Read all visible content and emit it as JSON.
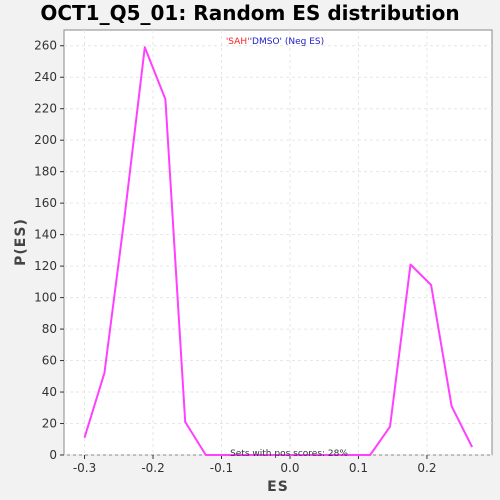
{
  "chart_data": {
    "type": "line",
    "title": "OCT1_Q5_01: Random ES distribution",
    "xlabel": "ES",
    "ylabel": "P(ES)",
    "xlim": [
      -0.33,
      0.295
    ],
    "ylim": [
      0,
      270
    ],
    "x_ticks": [
      "-0.3",
      "-0.2",
      "-0.1",
      "0.0",
      "0.1",
      "0.2"
    ],
    "x_tick_values": [
      -0.3,
      -0.2,
      -0.1,
      0.0,
      0.1,
      0.2
    ],
    "y_ticks": [
      "0",
      "20",
      "40",
      "60",
      "80",
      "100",
      "120",
      "140",
      "160",
      "180",
      "200",
      "220",
      "240",
      "260"
    ],
    "y_tick_values": [
      0,
      20,
      40,
      60,
      80,
      100,
      120,
      140,
      160,
      180,
      200,
      220,
      240,
      260
    ],
    "grid": true,
    "series": [
      {
        "color": "#ff40ff",
        "points": [
          [
            -0.3,
            11
          ],
          [
            -0.271,
            52
          ],
          [
            -0.242,
            150
          ],
          [
            -0.212,
            259
          ],
          [
            -0.182,
            226
          ],
          [
            -0.153,
            21
          ],
          [
            -0.123,
            0
          ],
          [
            -0.094,
            0
          ],
          [
            -0.064,
            0
          ],
          [
            -0.035,
            0
          ],
          [
            -0.005,
            0
          ],
          [
            0.024,
            0
          ],
          [
            0.054,
            0
          ],
          [
            0.083,
            0
          ],
          [
            0.117,
            0
          ],
          [
            0.146,
            18
          ],
          [
            0.176,
            121
          ],
          [
            0.206,
            108
          ],
          [
            0.236,
            31
          ],
          [
            0.266,
            5
          ]
        ]
      }
    ],
    "annotations": {
      "legend_sah": "'SAH'",
      "legend_dmso": "'DMSO'",
      "legend_neg": " (Neg ES)",
      "legend_sah_color": "#ff2020",
      "legend_dmso_color": "#2020cc",
      "pos_scores": "Sets with pos scores: 28%"
    }
  }
}
